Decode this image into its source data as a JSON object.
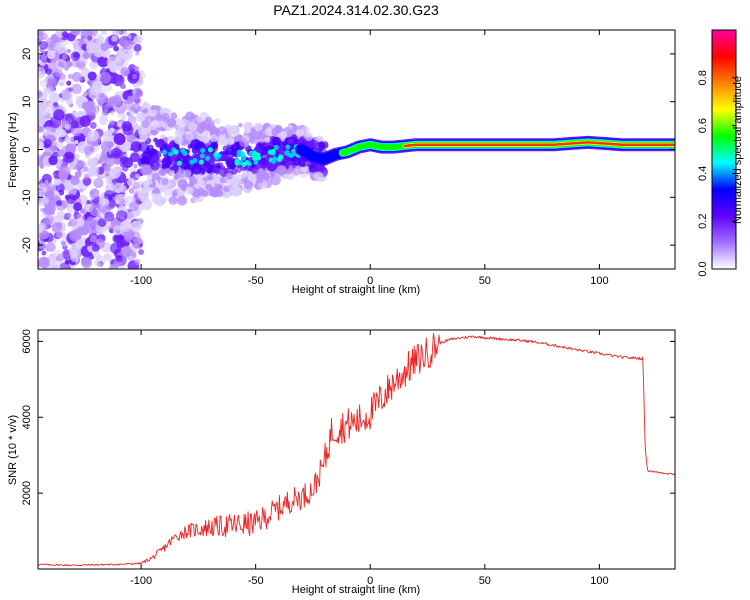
{
  "title": "PAZ1.2024.314.02.30.G23",
  "chart_data": [
    {
      "type": "heatmap",
      "title": "PAZ1.2024.314.02.30.G23",
      "xlabel": "Height of straight line (km)",
      "ylabel": "Frequency (Hz)",
      "xlim": [
        -145,
        133
      ],
      "ylim": [
        -25,
        25
      ],
      "xticks": [
        -100,
        -50,
        0,
        50,
        100
      ],
      "yticks": [
        -20,
        -10,
        0,
        10,
        20
      ],
      "colorbar": {
        "label": "Normalized spectral amplitude",
        "range": [
          0,
          1
        ],
        "ticks": [
          0.0,
          0.2,
          0.4,
          0.6,
          0.8
        ],
        "colormap": [
          "#ffffff",
          "#a070ff",
          "#6000ff",
          "#0000ff",
          "#00ffff",
          "#00ff00",
          "#ffff00",
          "#ff8000",
          "#ff0000",
          "#ff00a0"
        ]
      },
      "ridge": {
        "x": [
          -90,
          -80,
          -70,
          -60,
          -50,
          -40,
          -35,
          -30,
          -25,
          -20,
          -15,
          -10,
          -5,
          0,
          5,
          10,
          20,
          40,
          60,
          80,
          95,
          110,
          133
        ],
        "y": [
          -1.0,
          -2.0,
          -1.5,
          -2.0,
          -1.5,
          -1.0,
          -0.5,
          0.0,
          -1.5,
          -2.0,
          -1.0,
          -0.5,
          0.5,
          1.0,
          0.5,
          0.5,
          1.0,
          1.0,
          1.0,
          1.0,
          1.5,
          1.0,
          1.0
        ]
      }
    },
    {
      "type": "line",
      "xlabel": "Height of straight line (km)",
      "ylabel": "SNR (10 * v/v)",
      "xlim": [
        -145,
        133
      ],
      "ylim": [
        0,
        6300
      ],
      "xticks": [
        -100,
        -50,
        0,
        50,
        100
      ],
      "yticks": [
        2000,
        4000,
        6000
      ],
      "color": "#ee2222",
      "series": [
        {
          "x": [
            -145,
            -130,
            -110,
            -100,
            -95,
            -90,
            -85,
            -80,
            -70,
            -60,
            -50,
            -45,
            -40,
            -35,
            -30,
            -25,
            -20,
            -17,
            -15,
            -10,
            -5,
            0,
            5,
            10,
            15,
            20,
            25,
            30,
            35,
            40,
            45,
            50,
            60,
            70,
            80,
            90,
            100,
            110,
            119,
            120,
            121,
            125,
            133
          ],
          "y": [
            120,
            100,
            120,
            150,
            300,
            550,
            850,
            1000,
            1100,
            1150,
            1200,
            1400,
            1600,
            1800,
            1900,
            2100,
            2800,
            3600,
            3700,
            3800,
            3900,
            4100,
            4500,
            4900,
            5200,
            5500,
            5700,
            5950,
            6050,
            6100,
            6130,
            6100,
            6050,
            6000,
            5900,
            5780,
            5680,
            5580,
            5550,
            3200,
            2600,
            2550,
            2500
          ]
        }
      ]
    }
  ]
}
